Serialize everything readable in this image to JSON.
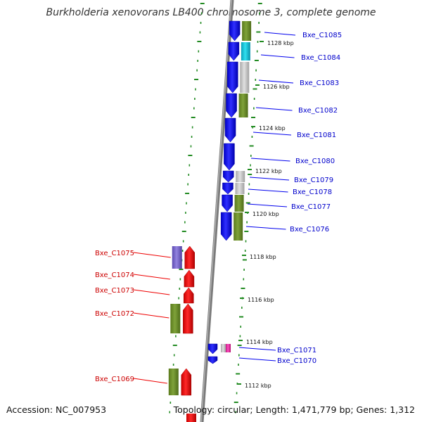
{
  "title": "Burkholderia xenovorans LB400 chromosome 3, complete genome",
  "footer": {
    "accession": "Accession: NC_007953",
    "summary": "Topology: circular; Length: 1,471,779 bp; Genes: 1,312"
  },
  "colors": {
    "forward_cds": "#1010ee",
    "reverse_cds": "#ee1010",
    "cog_green": "#6a8c23",
    "cog_grey": "#c8c8c8",
    "cog_cyan": "#18c8d8",
    "cog_purple": "#7a66c8",
    "cog_pink": "#ee33aa",
    "backbone": "#888888",
    "ruler": "#228b22"
  },
  "ticks": [
    "1128 kbp",
    "1126 kbp",
    "1124 kbp",
    "1122 kbp",
    "1120 kbp",
    "1118 kbp",
    "1116 kbp",
    "1114 kbp",
    "1112 kbp"
  ],
  "forward_genes": [
    {
      "label": "Bxe_C1085",
      "cog": "green"
    },
    {
      "label": "Bxe_C1084",
      "cog": "cyan"
    },
    {
      "label": "Bxe_C1083",
      "cog": "grey"
    },
    {
      "label": "Bxe_C1082",
      "cog": "green"
    },
    {
      "label": "Bxe_C1081",
      "cog": ""
    },
    {
      "label": "Bxe_C1080",
      "cog": ""
    },
    {
      "label": "Bxe_C1079",
      "cog": "grey"
    },
    {
      "label": "Bxe_C1078",
      "cog": "grey"
    },
    {
      "label": "Bxe_C1077",
      "cog": "green"
    },
    {
      "label": "Bxe_C1076",
      "cog": "green"
    },
    {
      "label": "Bxe_C1071",
      "cog": "grey,pink"
    },
    {
      "label": "Bxe_C1070",
      "cog": ""
    }
  ],
  "reverse_genes": [
    {
      "label": "Bxe_C1075",
      "cog": "purple"
    },
    {
      "label": "Bxe_C1074",
      "cog": ""
    },
    {
      "label": "Bxe_C1073",
      "cog": ""
    },
    {
      "label": "Bxe_C1072",
      "cog": "green"
    },
    {
      "label": "Bxe_C1069",
      "cog": "green"
    }
  ]
}
